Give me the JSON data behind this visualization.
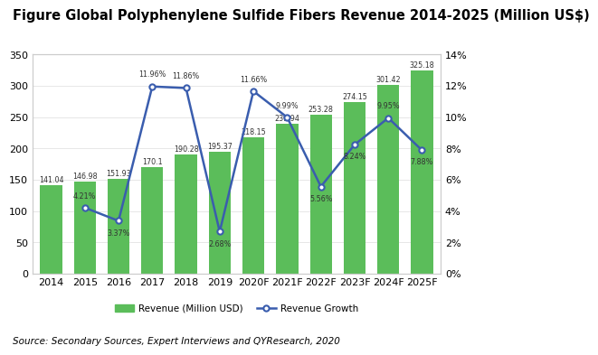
{
  "title": "Figure Global Polyphenylene Sulfide Fibers Revenue 2014-2025 (Million US$)",
  "source": "Source: Secondary Sources, Expert Interviews and QYResearch, 2020",
  "categories": [
    "2014",
    "2015",
    "2016",
    "2017",
    "2018",
    "2019",
    "2020F",
    "2021F",
    "2022F",
    "2023F",
    "2024F",
    "2025F"
  ],
  "revenue": [
    141.04,
    146.98,
    151.93,
    170.1,
    190.28,
    195.37,
    218.15,
    239.94,
    253.28,
    274.15,
    301.42,
    325.18
  ],
  "growth": [
    null,
    4.21,
    3.37,
    11.96,
    11.86,
    2.68,
    11.66,
    9.99,
    5.56,
    8.24,
    9.95,
    7.88
  ],
  "bar_color": "#5BBD5A",
  "line_color": "#3A5DAE",
  "marker_color": "#3A5DAE",
  "ylim_left": [
    0,
    350
  ],
  "ylim_right": [
    0,
    14
  ],
  "yticks_left": [
    0,
    50,
    100,
    150,
    200,
    250,
    300,
    350
  ],
  "yticks_right": [
    0,
    2,
    4,
    6,
    8,
    10,
    12,
    14
  ],
  "legend_labels": [
    "Revenue (Million USD)",
    "Revenue Growth"
  ],
  "background_color": "#FFFFFF",
  "plot_bg_color": "#FFFFFF",
  "title_fontsize": 10.5,
  "tick_fontsize": 8,
  "label_fontsize": 6.5
}
